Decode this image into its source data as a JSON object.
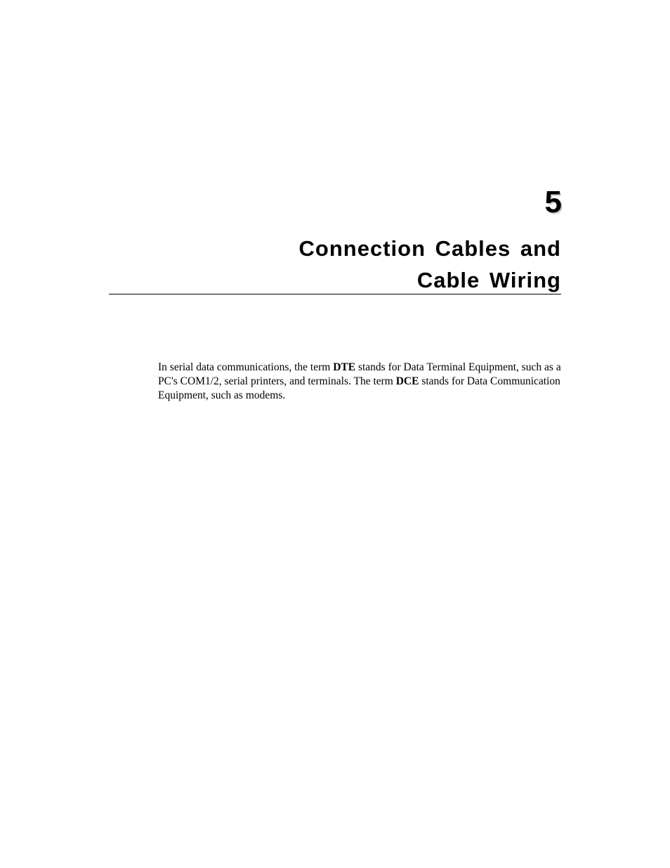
{
  "chapter": {
    "number": "5",
    "title_line1": "Connection Cables and",
    "title_line2": "Cable Wiring"
  },
  "paragraph": {
    "part1": "In serial data communications, the term ",
    "bold1": "DTE",
    "part2": " stands for Data Terminal Equipment, such as a PC's COM1/2, serial printers, and terminals. The term ",
    "bold2": "DCE",
    "part3": " stands for Data Communication Equipment, such as modems."
  }
}
